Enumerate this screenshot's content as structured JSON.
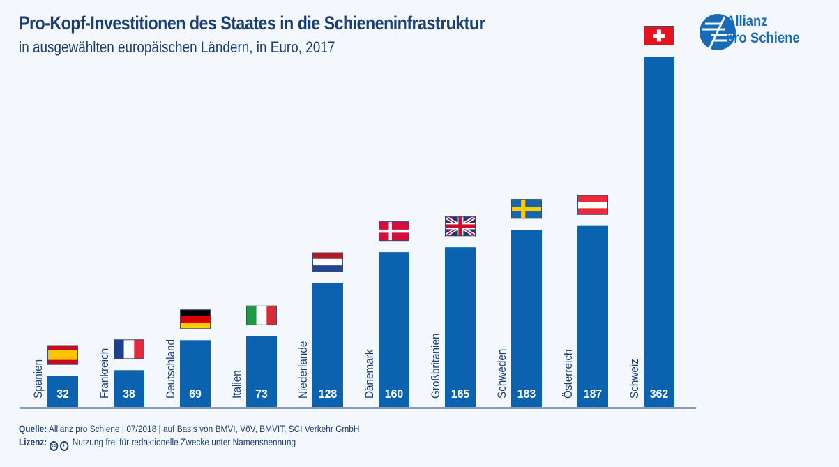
{
  "header": {
    "title": "Pro-Kopf-Investitionen des Staates in die Schieneninfrastruktur",
    "subtitle": "in ausgewählten europäischen Ländern, in Euro, 2017"
  },
  "logo": {
    "line1": "Allianz",
    "line2": "pro Schiene",
    "color": "#1a6bb5"
  },
  "footer": {
    "source_label": "Quelle:",
    "source_text": "Allianz pro Schiene | 07/2018 | auf Basis von BMVI, VöV, BMVIT, SCI Verkehr GmbH",
    "license_label": "Lizenz:",
    "license_icons": [
      "cc-icon",
      "by-attribution-icon"
    ],
    "license_text": "Nutzung frei für redaktionelle Zwecke unter Namensnennung"
  },
  "colors": {
    "bar": "#0b63b0",
    "text_dark": "#1a3f74",
    "background": "#f4f8fc"
  },
  "chart_data": {
    "type": "bar",
    "title": "Pro-Kopf-Investitionen des Staates in die Schieneninfrastruktur",
    "subtitle": "in ausgewählten europäischen Ländern, in Euro, 2017",
    "xlabel": "",
    "ylabel": "",
    "ylim": [
      0,
      362
    ],
    "grid": false,
    "categories": [
      "Spanien",
      "Frankreich",
      "Deutschland",
      "Italien",
      "Niederlande",
      "Dänemark",
      "Großbritanien",
      "Schweden",
      "Österreich",
      "Schweiz"
    ],
    "values": [
      32,
      38,
      69,
      73,
      128,
      160,
      165,
      183,
      187,
      362
    ],
    "flags": [
      "es",
      "fr",
      "de",
      "it",
      "nl",
      "dk",
      "gb",
      "se",
      "at",
      "ch"
    ],
    "data_labels": [
      "32",
      "38",
      "69",
      "73",
      "128",
      "160",
      "165",
      "183",
      "187",
      "362"
    ]
  }
}
